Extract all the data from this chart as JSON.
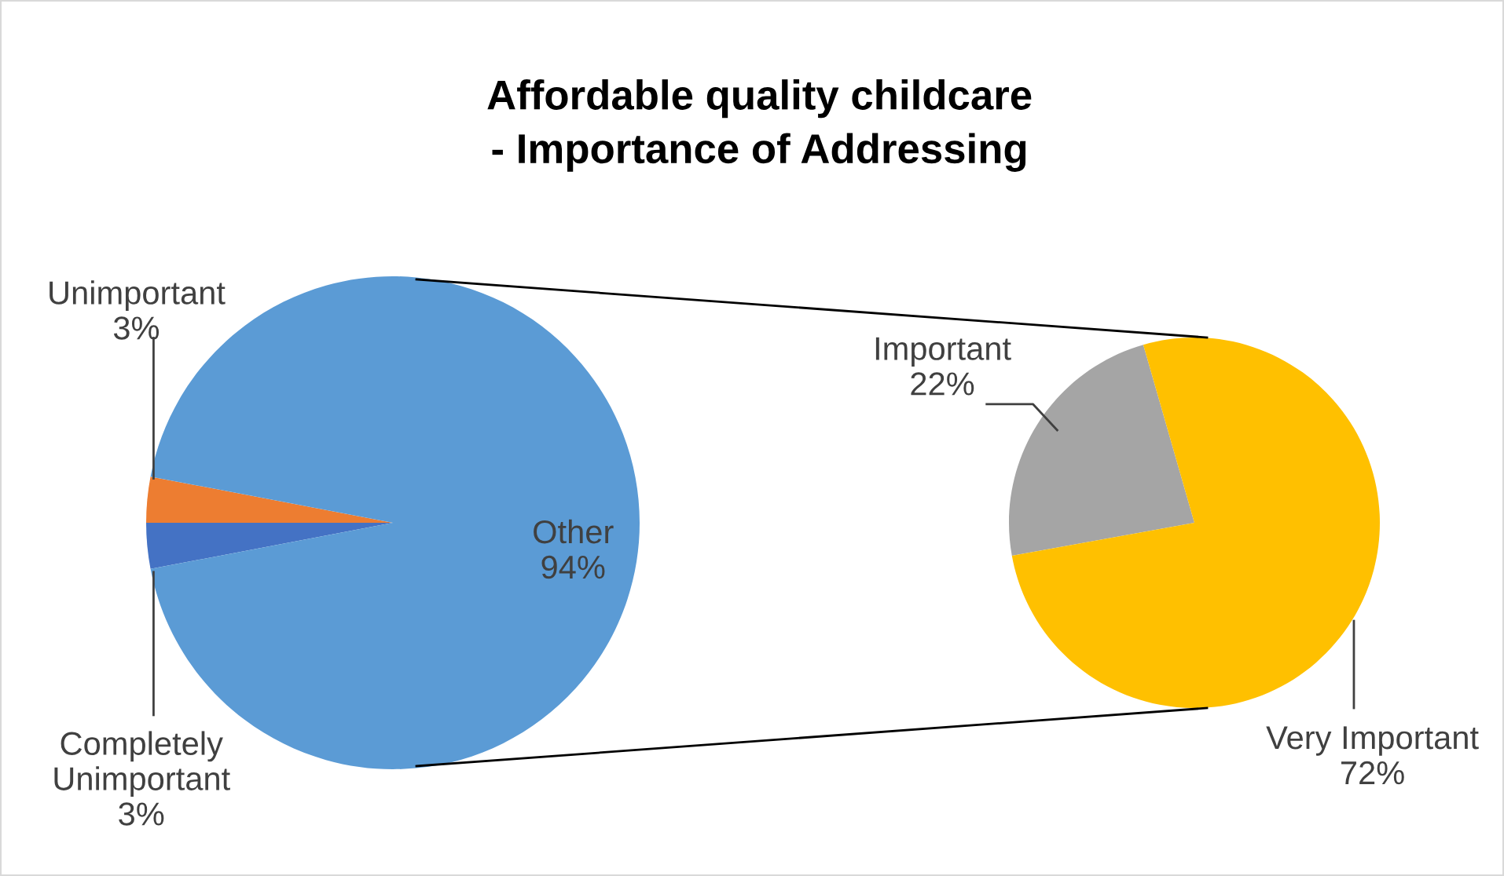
{
  "chart_data": [
    {
      "type": "pie",
      "title": "Affordable quality childcare\n- Importance of Addressing",
      "categories": [
        "Completely\nUnimportant",
        "Unimportant",
        "Other"
      ],
      "values": [
        3,
        3,
        94
      ],
      "value_labels": [
        "3%",
        "3%",
        "94%"
      ],
      "colors": [
        "#4472c4",
        "#ed7d31",
        "#5b9bd5"
      ],
      "legend": false
    },
    {
      "type": "pie",
      "categories": [
        "Important",
        "Very Important"
      ],
      "values": [
        22,
        72
      ],
      "value_labels": [
        "22%",
        "72%"
      ],
      "colors": [
        "#a5a5a5",
        "#ffc000"
      ],
      "legend": false
    }
  ]
}
